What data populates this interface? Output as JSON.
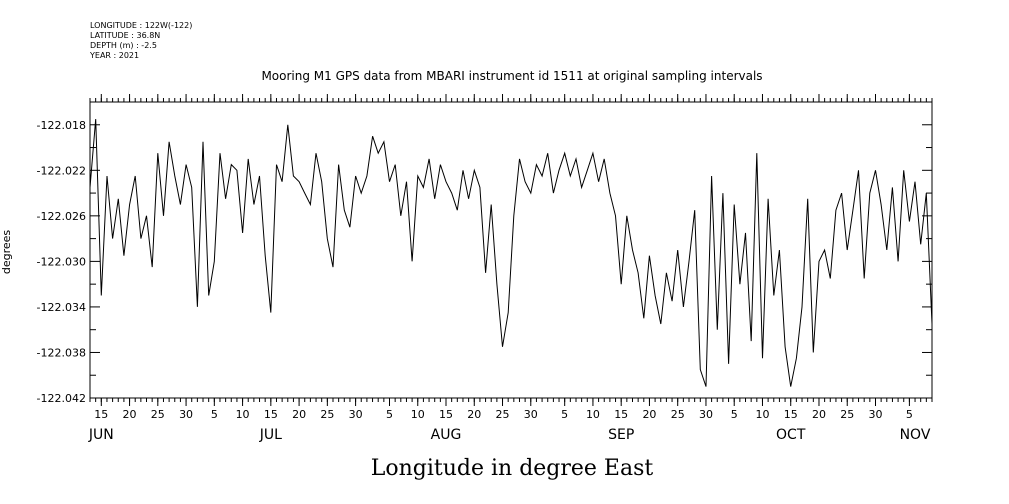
{
  "meta": {
    "longitude": "LONGITUDE : 122W(-122)",
    "latitude": "LATITUDE : 36.8N",
    "depth": "DEPTH (m) : -2.5",
    "year": "YEAR : 2021"
  },
  "chart_data": {
    "type": "line",
    "title": "Mooring M1 GPS data from MBARI instrument id 1511 at original sampling intervals",
    "xlabel": "Longitude in degree East",
    "ylabel": "degrees",
    "ylim": [
      -122.042,
      -122.016
    ],
    "xlim": [
      "2021-06-13",
      "2021-11-09"
    ],
    "y_ticks": [
      -122.018,
      -122.022,
      -122.026,
      -122.03,
      -122.034,
      -122.038,
      -122.042
    ],
    "y_tick_labels": [
      "-122.018",
      "-122.022",
      "-122.026",
      "-122.030",
      "-122.034",
      "-122.038",
      "-122.042"
    ],
    "x_day_ticks": [
      {
        "date": "2021-06-15",
        "label": "15"
      },
      {
        "date": "2021-06-20",
        "label": "20"
      },
      {
        "date": "2021-06-25",
        "label": "25"
      },
      {
        "date": "2021-06-30",
        "label": "30"
      },
      {
        "date": "2021-07-05",
        "label": "5"
      },
      {
        "date": "2021-07-10",
        "label": "10"
      },
      {
        "date": "2021-07-15",
        "label": "15"
      },
      {
        "date": "2021-07-20",
        "label": "20"
      },
      {
        "date": "2021-07-25",
        "label": "25"
      },
      {
        "date": "2021-07-30",
        "label": "30"
      },
      {
        "date": "2021-08-05",
        "label": "5"
      },
      {
        "date": "2021-08-10",
        "label": "10"
      },
      {
        "date": "2021-08-15",
        "label": "15"
      },
      {
        "date": "2021-08-20",
        "label": "20"
      },
      {
        "date": "2021-08-25",
        "label": "25"
      },
      {
        "date": "2021-08-30",
        "label": "30"
      },
      {
        "date": "2021-09-05",
        "label": "5"
      },
      {
        "date": "2021-09-10",
        "label": "10"
      },
      {
        "date": "2021-09-15",
        "label": "15"
      },
      {
        "date": "2021-09-20",
        "label": "20"
      },
      {
        "date": "2021-09-25",
        "label": "25"
      },
      {
        "date": "2021-09-30",
        "label": "30"
      },
      {
        "date": "2021-10-05",
        "label": "5"
      },
      {
        "date": "2021-10-10",
        "label": "10"
      },
      {
        "date": "2021-10-15",
        "label": "15"
      },
      {
        "date": "2021-10-20",
        "label": "20"
      },
      {
        "date": "2021-10-25",
        "label": "25"
      },
      {
        "date": "2021-10-30",
        "label": "30"
      },
      {
        "date": "2021-11-05",
        "label": "5"
      }
    ],
    "x_month_labels": [
      {
        "date": "2021-06-15",
        "label": "JUN"
      },
      {
        "date": "2021-07-15",
        "label": "JUL"
      },
      {
        "date": "2021-08-15",
        "label": "AUG"
      },
      {
        "date": "2021-09-15",
        "label": "SEP"
      },
      {
        "date": "2021-10-15",
        "label": "OCT"
      },
      {
        "date": "2021-11-15",
        "label": "NOV"
      }
    ],
    "series": [
      {
        "x": [
          "2021-06-13",
          "2021-06-14",
          "2021-06-15",
          "2021-06-16",
          "2021-06-17",
          "2021-06-18",
          "2021-06-19",
          "2021-06-20",
          "2021-06-21",
          "2021-06-22",
          "2021-06-23",
          "2021-06-24",
          "2021-06-25",
          "2021-06-26",
          "2021-06-27",
          "2021-06-28",
          "2021-06-29",
          "2021-06-30",
          "2021-07-01",
          "2021-07-02",
          "2021-07-03",
          "2021-07-04",
          "2021-07-05",
          "2021-07-06",
          "2021-07-07",
          "2021-07-08",
          "2021-07-09",
          "2021-07-10",
          "2021-07-11",
          "2021-07-12",
          "2021-07-13",
          "2021-07-14",
          "2021-07-15",
          "2021-07-16",
          "2021-07-17",
          "2021-07-18",
          "2021-07-19",
          "2021-07-20",
          "2021-07-21",
          "2021-07-22",
          "2021-07-23",
          "2021-07-24",
          "2021-07-25",
          "2021-07-26",
          "2021-07-27",
          "2021-07-28",
          "2021-07-29",
          "2021-07-30",
          "2021-07-31",
          "2021-08-01",
          "2021-08-02",
          "2021-08-03",
          "2021-08-04",
          "2021-08-05",
          "2021-08-06",
          "2021-08-07",
          "2021-08-08",
          "2021-08-09",
          "2021-08-10",
          "2021-08-11",
          "2021-08-12",
          "2021-08-13",
          "2021-08-14",
          "2021-08-15",
          "2021-08-16",
          "2021-08-17",
          "2021-08-18",
          "2021-08-19",
          "2021-08-20",
          "2021-08-21",
          "2021-08-22",
          "2021-08-23",
          "2021-08-24",
          "2021-08-25",
          "2021-08-26",
          "2021-08-27",
          "2021-08-28",
          "2021-08-29",
          "2021-08-30",
          "2021-08-31",
          "2021-09-01",
          "2021-09-02",
          "2021-09-03",
          "2021-09-04",
          "2021-09-05",
          "2021-09-06",
          "2021-09-07",
          "2021-09-08",
          "2021-09-09",
          "2021-09-10",
          "2021-09-11",
          "2021-09-12",
          "2021-09-13",
          "2021-09-14",
          "2021-09-15",
          "2021-09-16",
          "2021-09-17",
          "2021-09-18",
          "2021-09-19",
          "2021-09-20",
          "2021-09-21",
          "2021-09-22",
          "2021-09-23",
          "2021-09-24",
          "2021-09-25",
          "2021-09-26",
          "2021-09-27",
          "2021-09-28",
          "2021-09-29",
          "2021-09-30",
          "2021-10-01",
          "2021-10-02",
          "2021-10-03",
          "2021-10-04",
          "2021-10-05",
          "2021-10-06",
          "2021-10-07",
          "2021-10-08",
          "2021-10-09",
          "2021-10-10",
          "2021-10-11",
          "2021-10-12",
          "2021-10-13",
          "2021-10-14",
          "2021-10-15",
          "2021-10-16",
          "2021-10-17",
          "2021-10-18",
          "2021-10-19",
          "2021-10-20",
          "2021-10-21",
          "2021-10-22",
          "2021-10-23",
          "2021-10-24",
          "2021-10-25",
          "2021-10-26",
          "2021-10-27",
          "2021-10-28",
          "2021-10-29",
          "2021-10-30",
          "2021-10-31",
          "2021-11-01",
          "2021-11-02",
          "2021-11-03",
          "2021-11-04",
          "2021-11-05",
          "2021-11-06",
          "2021-11-07",
          "2021-11-08",
          "2021-11-09"
        ],
        "y": [
          -122.0235,
          -122.0175,
          -122.033,
          -122.0225,
          -122.028,
          -122.0245,
          -122.0295,
          -122.025,
          -122.0225,
          -122.028,
          -122.026,
          -122.0305,
          -122.0205,
          -122.026,
          -122.0195,
          -122.0225,
          -122.025,
          -122.0215,
          -122.0235,
          -122.034,
          -122.0195,
          -122.033,
          -122.03,
          -122.0205,
          -122.0245,
          -122.0215,
          -122.022,
          -122.0275,
          -122.021,
          -122.025,
          -122.0225,
          -122.0295,
          -122.0345,
          -122.0215,
          -122.023,
          -122.018,
          -122.0225,
          -122.023,
          -122.024,
          -122.025,
          -122.0205,
          -122.023,
          -122.028,
          -122.0305,
          -122.0215,
          -122.0255,
          -122.027,
          -122.0225,
          -122.024,
          -122.0225,
          -122.019,
          -122.0205,
          -122.0195,
          -122.023,
          -122.0215,
          -122.026,
          -122.023,
          -122.03,
          -122.0225,
          -122.0235,
          -122.021,
          -122.0245,
          -122.0215,
          -122.023,
          -122.024,
          -122.0255,
          -122.022,
          -122.0245,
          -122.022,
          -122.0235,
          -122.031,
          -122.025,
          -122.032,
          -122.0375,
          -122.0345,
          -122.026,
          -122.021,
          -122.023,
          -122.024,
          -122.0215,
          -122.0225,
          -122.0205,
          -122.024,
          -122.022,
          -122.0205,
          -122.0225,
          -122.021,
          -122.0235,
          -122.022,
          -122.0205,
          -122.023,
          -122.021,
          -122.024,
          -122.026,
          -122.032,
          -122.026,
          -122.029,
          -122.031,
          -122.035,
          -122.0295,
          -122.033,
          -122.0355,
          -122.031,
          -122.0335,
          -122.029,
          -122.034,
          -122.03,
          -122.0255,
          -122.0395,
          -122.041,
          -122.0225,
          -122.036,
          -122.024,
          -122.039,
          -122.025,
          -122.032,
          -122.0275,
          -122.037,
          -122.0205,
          -122.0385,
          -122.0245,
          -122.033,
          -122.029,
          -122.0375,
          -122.041,
          -122.0385,
          -122.034,
          -122.0245,
          -122.038,
          -122.03,
          -122.029,
          -122.0315,
          -122.0255,
          -122.024,
          -122.029,
          -122.0255,
          -122.022,
          -122.0315,
          -122.024,
          -122.022,
          -122.025,
          -122.029,
          -122.0235,
          -122.03,
          -122.022,
          -122.0265,
          -122.023,
          -122.0285,
          -122.024,
          -122.0355
        ]
      }
    ],
    "grid": false,
    "legend": "none",
    "line_color": "#000000"
  }
}
